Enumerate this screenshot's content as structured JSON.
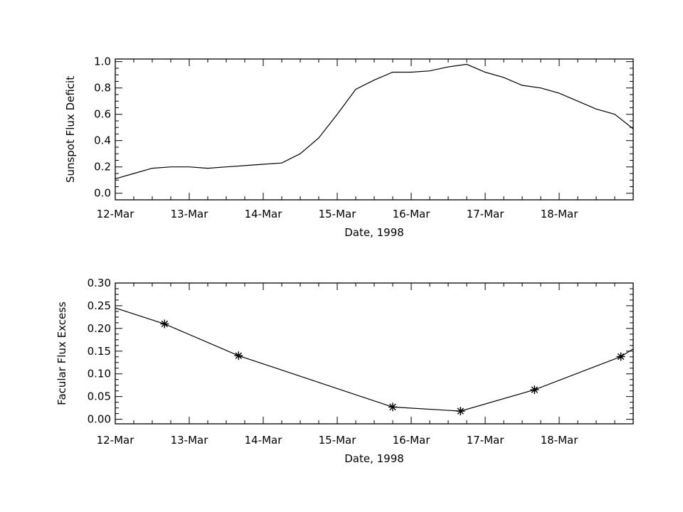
{
  "chart_data": [
    {
      "type": "line",
      "title": "",
      "xlabel": "Date, 1998",
      "ylabel": "Sunspot Flux Deficit",
      "x_tick_labels": [
        "12-Mar",
        "13-Mar",
        "14-Mar",
        "15-Mar",
        "16-Mar",
        "17-Mar",
        "18-Mar"
      ],
      "xlim": [
        "1998-03-12",
        "1998-03-19"
      ],
      "ylim": [
        -0.05,
        1.02
      ],
      "y_ticks": [
        0.0,
        0.2,
        0.4,
        0.6,
        0.8,
        1.0
      ],
      "y_tick_labels": [
        "0.0",
        "0.2",
        "0.4",
        "0.6",
        "0.8",
        "1.0"
      ],
      "grid": false,
      "marker": "none",
      "series": [
        {
          "x": [
            "1998-03-12 00:00",
            "1998-03-12 06:00",
            "1998-03-12 12:00",
            "1998-03-12 18:00",
            "1998-03-13 00:00",
            "1998-03-13 06:00",
            "1998-03-13 12:00",
            "1998-03-13 18:00",
            "1998-03-14 00:00",
            "1998-03-14 06:00",
            "1998-03-14 12:00",
            "1998-03-14 18:00",
            "1998-03-15 00:00",
            "1998-03-15 06:00",
            "1998-03-15 12:00",
            "1998-03-15 18:00",
            "1998-03-16 00:00",
            "1998-03-16 06:00",
            "1998-03-16 12:00",
            "1998-03-16 18:00",
            "1998-03-17 00:00",
            "1998-03-17 06:00",
            "1998-03-17 12:00",
            "1998-03-17 18:00",
            "1998-03-18 00:00",
            "1998-03-18 06:00",
            "1998-03-18 12:00",
            "1998-03-18 18:00",
            "1998-03-19 00:00"
          ],
          "values": [
            0.11,
            0.15,
            0.19,
            0.2,
            0.2,
            0.19,
            0.2,
            0.21,
            0.22,
            0.23,
            0.3,
            0.42,
            0.6,
            0.79,
            0.86,
            0.92,
            0.92,
            0.93,
            0.96,
            0.98,
            0.92,
            0.88,
            0.82,
            0.8,
            0.76,
            0.7,
            0.64,
            0.6,
            0.49
          ]
        }
      ]
    },
    {
      "type": "line",
      "title": "",
      "xlabel": "Date, 1998",
      "ylabel": "Facular Flux Excess",
      "x_tick_labels": [
        "12-Mar",
        "13-Mar",
        "14-Mar",
        "15-Mar",
        "16-Mar",
        "17-Mar",
        "18-Mar"
      ],
      "xlim": [
        "1998-03-12",
        "1998-03-19"
      ],
      "ylim": [
        -0.01,
        0.3
      ],
      "y_ticks": [
        0.0,
        0.05,
        0.1,
        0.15,
        0.2,
        0.25,
        0.3
      ],
      "y_tick_labels": [
        "0.00",
        "0.05",
        "0.10",
        "0.15",
        "0.20",
        "0.25",
        "0.30"
      ],
      "grid": false,
      "marker": "asterisk",
      "series": [
        {
          "x": [
            "1998-03-12 00:00",
            "1998-03-12 16:00",
            "1998-03-13 16:00",
            "1998-03-15 18:00",
            "1998-03-16 16:00",
            "1998-03-17 16:00",
            "1998-03-18 20:00",
            "1998-03-19 00:00"
          ],
          "values": [
            0.245,
            0.21,
            0.14,
            0.027,
            0.018,
            0.065,
            0.138,
            0.155
          ],
          "marker_flags": [
            false,
            true,
            true,
            true,
            true,
            true,
            true,
            false
          ]
        }
      ]
    }
  ]
}
